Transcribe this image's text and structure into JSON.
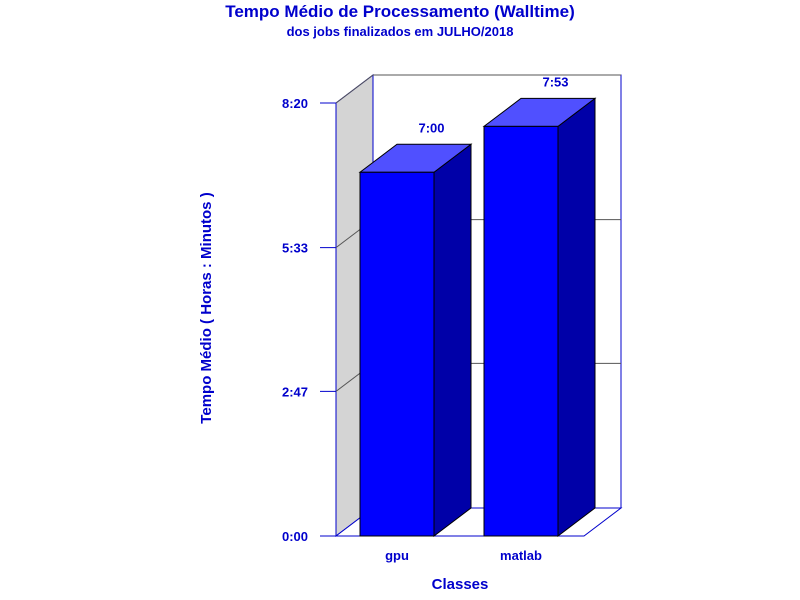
{
  "chart_data": {
    "type": "bar",
    "title": "Tempo Médio de Processamento (Walltime)",
    "subtitle": "dos jobs finalizados em JULHO/2018",
    "xlabel": "Classes",
    "ylabel": "Tempo Médio ( Horas : Minutos )",
    "categories": [
      "gpu",
      "matlab"
    ],
    "values": [
      420,
      473
    ],
    "value_labels": [
      "7:00",
      "7:53"
    ],
    "y_unit": "minutes",
    "ylim": [
      0,
      500
    ],
    "yticks": [
      0,
      167,
      333,
      500
    ],
    "ytick_labels": [
      "0:00",
      "2:47",
      "5:33",
      "8:20"
    ],
    "grid": true,
    "legend": "none",
    "style": "3d",
    "colors": {
      "bar_front": "#0000FF",
      "bar_top": "#5050FF",
      "bar_side": "#0000A8",
      "text": "#0000CC",
      "frame": "#0000CC",
      "wall": "#D4D4D4"
    }
  }
}
